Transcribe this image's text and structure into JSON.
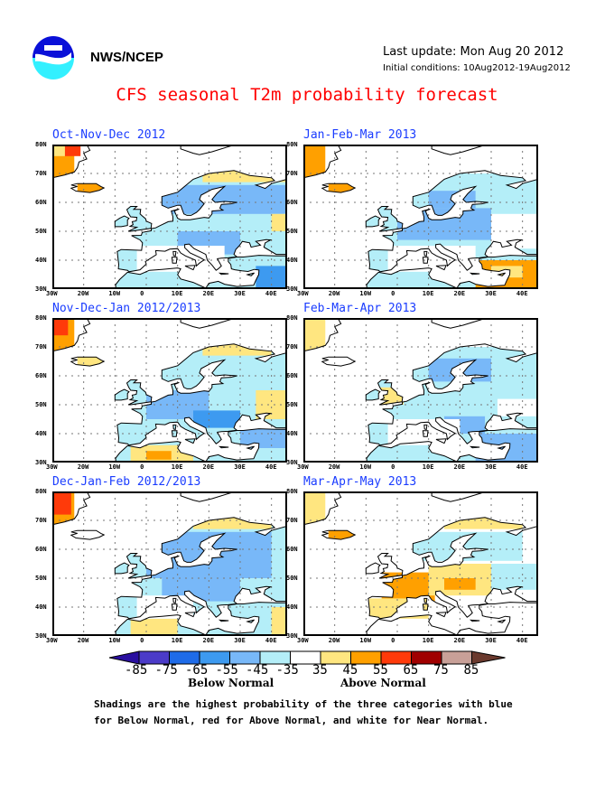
{
  "header": {
    "organization": "NWS/NCEP",
    "logo": "noaa-logo",
    "last_update": "Last update: Mon Aug 20 2012",
    "initial_conditions": "Initial conditions: 10Aug2012-19Aug2012",
    "title": "CFS seasonal T2m probability forecast"
  },
  "axes": {
    "lat_ticks": [
      "80N",
      "70N",
      "60N",
      "50N",
      "40N",
      "30N"
    ],
    "lon_ticks": [
      "30W",
      "20W",
      "10W",
      "0",
      "10E",
      "20E",
      "30E",
      "40E"
    ]
  },
  "panels": [
    {
      "title": "Oct-Nov-Dec 2012"
    },
    {
      "title": "Jan-Feb-Mar 2013"
    },
    {
      "title": "Nov-Dec-Jan 2012/2013"
    },
    {
      "title": "Feb-Mar-Apr 2013"
    },
    {
      "title": "Dec-Jan-Feb 2012/2013"
    },
    {
      "title": "Mar-Apr-May 2013"
    }
  ],
  "colorbar": {
    "labels": [
      "-85",
      "-75",
      "-65",
      "-55",
      "-45",
      "-35",
      "35",
      "45",
      "55",
      "65",
      "75",
      "85"
    ],
    "colors": [
      "#4b3bc8",
      "#1e6be8",
      "#3d9af0",
      "#78b8f8",
      "#b4eef8",
      "#ffffff",
      "#ffe680",
      "#ffa000",
      "#ff3a0a",
      "#a00000",
      "#c8a098"
    ],
    "low_arrow_color": "#2a0fa0",
    "high_arrow_color": "#6b3a2e",
    "below_label": "Below Normal",
    "above_label": "Above Normal"
  },
  "footnote": {
    "line1": "Shadings are the highest probability of the three categories with blue",
    "line2": "for Below Normal, red for Above Normal, and white for Near Normal."
  }
}
